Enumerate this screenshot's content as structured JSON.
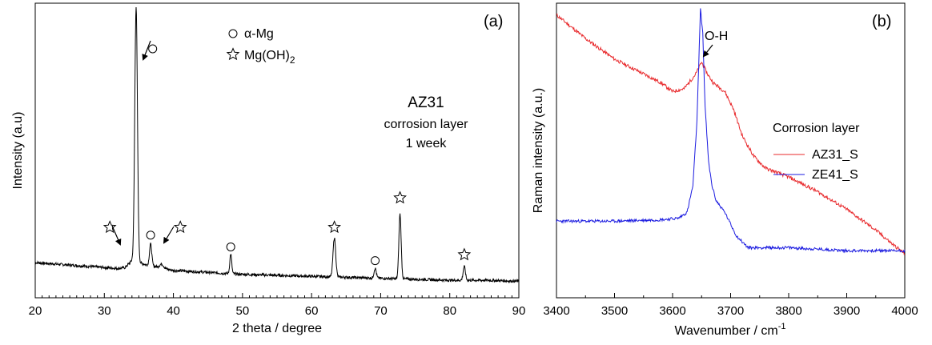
{
  "chart_data": [
    {
      "type": "line",
      "panel_label": "(a)",
      "xlabel": "2 theta / degree",
      "ylabel": "Intensity (a.u)",
      "xlim": [
        20,
        90
      ],
      "xticks": [
        "20",
        "30",
        "40",
        "50",
        "60",
        "70",
        "80",
        "90"
      ],
      "y_ticks_shown": false,
      "grid": false,
      "color": "#000000",
      "baseline": [
        [
          20,
          0.11
        ],
        [
          22,
          0.105
        ],
        [
          24,
          0.1
        ],
        [
          26,
          0.095
        ],
        [
          28,
          0.09
        ],
        [
          30,
          0.085
        ],
        [
          32,
          0.08
        ],
        [
          33,
          0.085
        ],
        [
          34,
          0.12
        ],
        [
          36,
          0.1
        ],
        [
          38,
          0.085
        ],
        [
          40,
          0.07
        ],
        [
          45,
          0.06
        ],
        [
          50,
          0.05
        ],
        [
          55,
          0.045
        ],
        [
          60,
          0.04
        ],
        [
          65,
          0.035
        ],
        [
          70,
          0.03
        ],
        [
          75,
          0.025
        ],
        [
          80,
          0.02
        ],
        [
          85,
          0.02
        ],
        [
          90,
          0.015
        ]
      ],
      "peaks": [
        {
          "pos": 34.6,
          "height": 1.3,
          "width": 0.35
        },
        {
          "pos": 36.7,
          "height": 0.11,
          "width": 0.3
        },
        {
          "pos": 38.3,
          "height": 0.02,
          "width": 0.5
        },
        {
          "pos": 48.3,
          "height": 0.1,
          "width": 0.25
        },
        {
          "pos": 63.3,
          "height": 0.2,
          "width": 0.35
        },
        {
          "pos": 69.2,
          "height": 0.05,
          "width": 0.3
        },
        {
          "pos": 72.8,
          "height": 0.33,
          "width": 0.3
        },
        {
          "pos": 82.1,
          "height": 0.07,
          "width": 0.3
        }
      ],
      "legend": [
        {
          "symbol": "circle",
          "label_main": "α-Mg",
          "label_sub": ""
        },
        {
          "symbol": "star",
          "label_main": "Mg(OH)",
          "label_sub": "2"
        }
      ],
      "sample_text": [
        "AZ31",
        "corrosion layer",
        "1 week"
      ],
      "markers": [
        {
          "symbol": "circle",
          "x": 37.0,
          "y": 1.2
        },
        {
          "symbol": "star",
          "x": 30.8,
          "y": 0.29
        },
        {
          "symbol": "circle",
          "x": 36.7,
          "y": 0.25
        },
        {
          "symbol": "star",
          "x": 41.0,
          "y": 0.29
        },
        {
          "symbol": "circle",
          "x": 48.3,
          "y": 0.19
        },
        {
          "symbol": "star",
          "x": 63.3,
          "y": 0.29
        },
        {
          "symbol": "circle",
          "x": 69.2,
          "y": 0.12
        },
        {
          "symbol": "star",
          "x": 72.8,
          "y": 0.44
        },
        {
          "symbol": "star",
          "x": 82.1,
          "y": 0.15
        }
      ]
    },
    {
      "type": "line",
      "panel_label": "(b)",
      "xlabel": "Wavenumber / cm",
      "xlabel_sup": "-1",
      "ylabel": "Raman intensity (a.u.)",
      "xlim": [
        3400,
        4000
      ],
      "xticks": [
        "3400",
        "3500",
        "3600",
        "3700",
        "3800",
        "3900",
        "4000"
      ],
      "y_ticks_shown": false,
      "grid": false,
      "peak_annotation": "O-H",
      "legend_title": "Corrosion layer",
      "series": [
        {
          "name": "AZ31_S",
          "color": "#e8282b",
          "points": [
            [
              3400,
              0.96
            ],
            [
              3450,
              0.88
            ],
            [
              3500,
              0.81
            ],
            [
              3550,
              0.76
            ],
            [
              3580,
              0.73
            ],
            [
              3600,
              0.7
            ],
            [
              3620,
              0.71
            ],
            [
              3640,
              0.76
            ],
            [
              3650,
              0.8
            ],
            [
              3660,
              0.76
            ],
            [
              3670,
              0.73
            ],
            [
              3690,
              0.7
            ],
            [
              3705,
              0.64
            ],
            [
              3720,
              0.55
            ],
            [
              3740,
              0.48
            ],
            [
              3760,
              0.44
            ],
            [
              3800,
              0.41
            ],
            [
              3850,
              0.36
            ],
            [
              3900,
              0.3
            ],
            [
              3950,
              0.23
            ],
            [
              3980,
              0.18
            ],
            [
              4000,
              0.15
            ]
          ]
        },
        {
          "name": "ZE41_S",
          "color": "#1b1be0",
          "points": [
            [
              3400,
              0.26
            ],
            [
              3500,
              0.26
            ],
            [
              3580,
              0.265
            ],
            [
              3610,
              0.27
            ],
            [
              3625,
              0.29
            ],
            [
              3635,
              0.38
            ],
            [
              3642,
              0.6
            ],
            [
              3648,
              0.98
            ],
            [
              3652,
              0.9
            ],
            [
              3656,
              0.65
            ],
            [
              3662,
              0.46
            ],
            [
              3668,
              0.38
            ],
            [
              3675,
              0.33
            ],
            [
              3690,
              0.29
            ],
            [
              3710,
              0.21
            ],
            [
              3730,
              0.17
            ],
            [
              3800,
              0.17
            ],
            [
              3900,
              0.16
            ],
            [
              4000,
              0.16
            ]
          ]
        }
      ]
    }
  ]
}
